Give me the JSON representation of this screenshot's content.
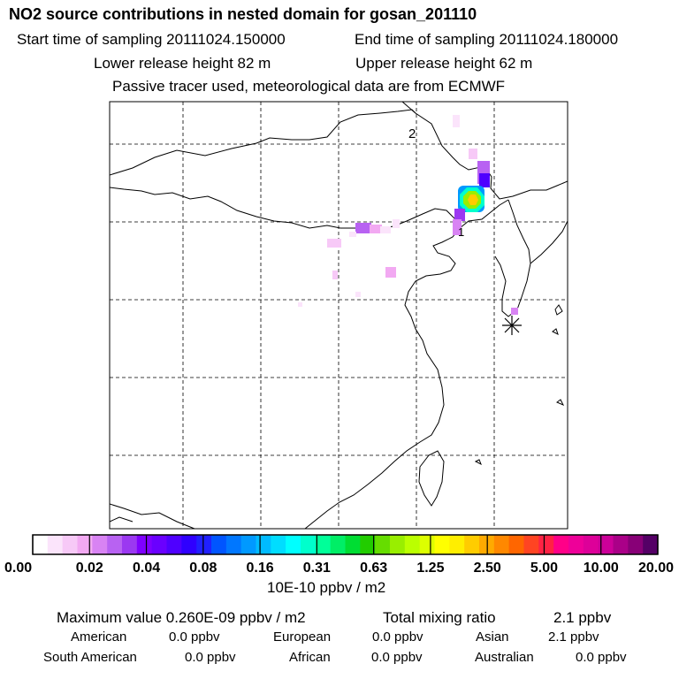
{
  "header": {
    "title": "NO2 source contributions in nested domain for gosan_201110",
    "start_sampling": "Start time of sampling 20111024.150000",
    "end_sampling": "End time of sampling 20111024.180000",
    "lower_release": "Lower release height   82 m",
    "upper_release": "Upper release height   62 m",
    "tracer_note": "Passive tracer used, meteorological data are from ECMWF"
  },
  "map": {
    "labels": [
      "2",
      "1"
    ],
    "station_marker": "asterisk-icon"
  },
  "colorbar": {
    "ticks": [
      "0.00",
      "0.02",
      "0.04",
      "0.08",
      "0.16",
      "0.31",
      "0.63",
      "1.25",
      "2.50",
      "5.00",
      "10.00",
      "20.00"
    ],
    "colors": [
      "#ffffff",
      "#fbe4fb",
      "#f7c9f7",
      "#f2a9f2",
      "#d883f3",
      "#b862f2",
      "#9b38f1",
      "#7f00ff",
      "#6a00ff",
      "#4f00ff",
      "#2f00ff",
      "#2020ff",
      "#0055ff",
      "#0077ff",
      "#0099ff",
      "#00bbff",
      "#00ddff",
      "#00ffff",
      "#00ffcc",
      "#00ff99",
      "#00ee66",
      "#00dd33",
      "#22cc00",
      "#66dd00",
      "#99ee00",
      "#bbff00",
      "#ddff00",
      "#ffff00",
      "#ffee00",
      "#ffcc00",
      "#ffaa00",
      "#ff8800",
      "#ff6600",
      "#ff4422",
      "#ff2244",
      "#ff0088",
      "#ee0099",
      "#dd0099",
      "#cc0099",
      "#aa0088",
      "#880077",
      "#550066"
    ],
    "units": "10E-10 ppbv / m2"
  },
  "stats": {
    "max_value": "Maximum value  0.260E-09 ppbv / m2",
    "total_mixing": "Total mixing ratio",
    "total_value": "2.1 ppbv",
    "regions": [
      {
        "name": "American",
        "value": "0.0 ppbv"
      },
      {
        "name": "European",
        "value": "0.0 ppbv"
      },
      {
        "name": "Asian",
        "value": "2.1 ppbv"
      },
      {
        "name": "South American",
        "value": "0.0 ppbv"
      },
      {
        "name": "African",
        "value": "0.0 ppbv"
      },
      {
        "name": "Australian",
        "value": "0.0 ppbv"
      }
    ]
  }
}
